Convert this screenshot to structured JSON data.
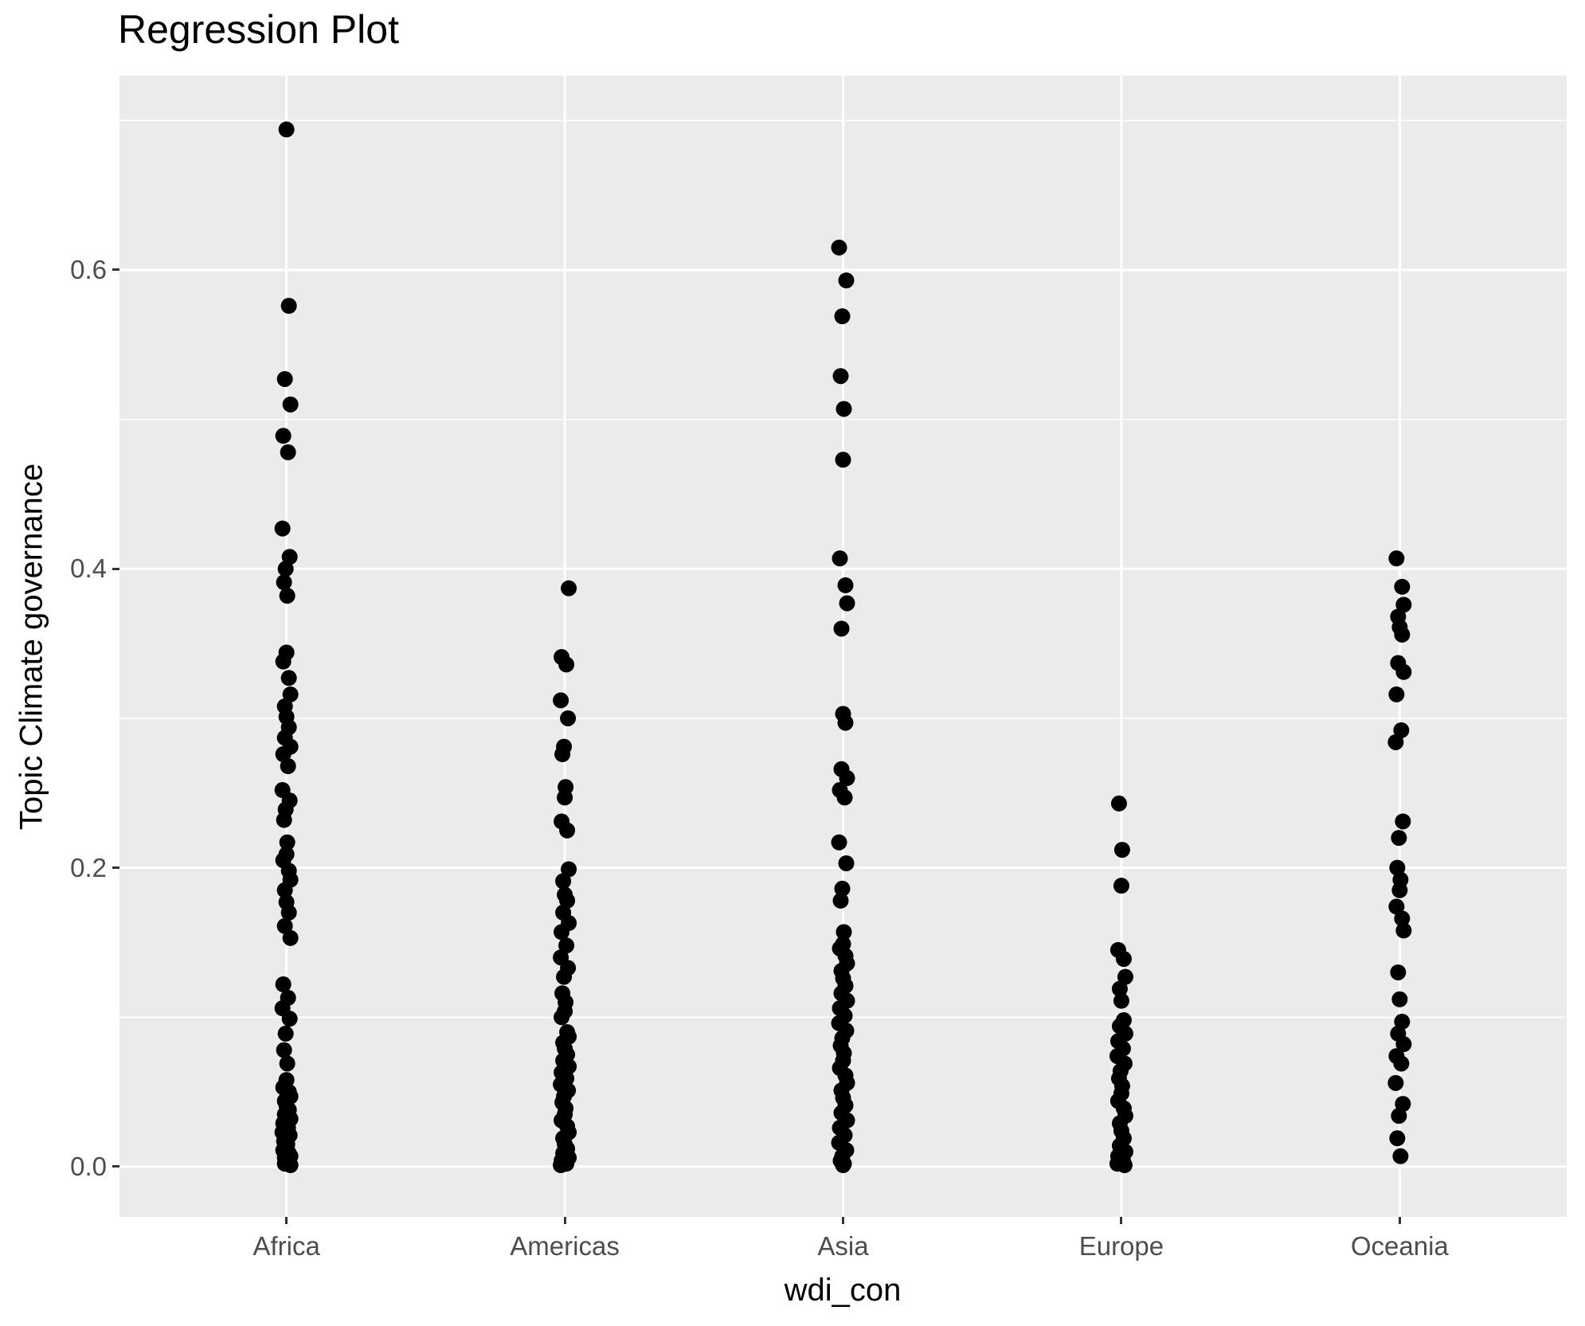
{
  "chart_data": {
    "type": "scatter",
    "title": "Regression Plot",
    "xlabel": "wdi_con",
    "ylabel": "Topic Climate governance",
    "legend": "none",
    "grid": "on",
    "x_categories": [
      "Africa",
      "Americas",
      "Asia",
      "Europe",
      "Oceania"
    ],
    "y_axis": {
      "tick_labels": [
        "0.0",
        "0.2",
        "0.4",
        "0.6"
      ],
      "tick_values": [
        0.0,
        0.2,
        0.4,
        0.6
      ],
      "minor_grid_values": [
        0.1,
        0.3,
        0.5,
        0.7
      ],
      "ylim": [
        -0.0336,
        0.73
      ]
    },
    "style": {
      "panel_bg": "#EBEBEB",
      "grid_color": "#FFFFFF",
      "point_color": "#000000",
      "tick_text_color": "#4D4D4D",
      "tick_mark_color": "#333333",
      "title_color": "#000000"
    },
    "series": [
      {
        "name": "Africa",
        "values": [
          0.694,
          0.576,
          0.527,
          0.51,
          0.489,
          0.478,
          0.427,
          0.408,
          0.4,
          0.391,
          0.382,
          0.344,
          0.338,
          0.327,
          0.316,
          0.308,
          0.301,
          0.294,
          0.287,
          0.281,
          0.276,
          0.268,
          0.252,
          0.245,
          0.239,
          0.232,
          0.217,
          0.209,
          0.205,
          0.198,
          0.192,
          0.185,
          0.177,
          0.17,
          0.161,
          0.153,
          0.122,
          0.113,
          0.106,
          0.099,
          0.089,
          0.078,
          0.069,
          0.058,
          0.053,
          0.05,
          0.047,
          0.044,
          0.041,
          0.038,
          0.035,
          0.032,
          0.029,
          0.026,
          0.023,
          0.021,
          0.019,
          0.017,
          0.015,
          0.013,
          0.011,
          0.009,
          0.007,
          0.006,
          0.004,
          0.003,
          0.002,
          0.001
        ]
      },
      {
        "name": "Americas",
        "values": [
          0.387,
          0.341,
          0.336,
          0.312,
          0.3,
          0.281,
          0.276,
          0.254,
          0.247,
          0.231,
          0.225,
          0.199,
          0.191,
          0.182,
          0.178,
          0.17,
          0.163,
          0.157,
          0.148,
          0.14,
          0.133,
          0.127,
          0.116,
          0.11,
          0.104,
          0.1,
          0.09,
          0.087,
          0.083,
          0.079,
          0.075,
          0.071,
          0.067,
          0.063,
          0.059,
          0.055,
          0.051,
          0.047,
          0.043,
          0.039,
          0.035,
          0.031,
          0.027,
          0.023,
          0.019,
          0.015,
          0.012,
          0.009,
          0.006,
          0.004,
          0.002,
          0.001
        ]
      },
      {
        "name": "Asia",
        "values": [
          0.615,
          0.593,
          0.569,
          0.529,
          0.507,
          0.473,
          0.407,
          0.389,
          0.377,
          0.36,
          0.303,
          0.297,
          0.266,
          0.26,
          0.252,
          0.247,
          0.217,
          0.203,
          0.186,
          0.178,
          0.157,
          0.149,
          0.146,
          0.141,
          0.136,
          0.131,
          0.126,
          0.121,
          0.116,
          0.111,
          0.106,
          0.101,
          0.096,
          0.091,
          0.086,
          0.081,
          0.076,
          0.071,
          0.066,
          0.061,
          0.056,
          0.051,
          0.046,
          0.041,
          0.036,
          0.031,
          0.026,
          0.021,
          0.016,
          0.011,
          0.007,
          0.004,
          0.002,
          0.001
        ]
      },
      {
        "name": "Europe",
        "values": [
          0.243,
          0.212,
          0.188,
          0.145,
          0.139,
          0.127,
          0.119,
          0.111,
          0.098,
          0.094,
          0.089,
          0.084,
          0.079,
          0.074,
          0.069,
          0.064,
          0.059,
          0.054,
          0.049,
          0.044,
          0.039,
          0.034,
          0.029,
          0.024,
          0.019,
          0.014,
          0.01,
          0.007,
          0.004,
          0.002,
          0.001
        ]
      },
      {
        "name": "Oceania",
        "values": [
          0.407,
          0.388,
          0.376,
          0.368,
          0.361,
          0.356,
          0.337,
          0.331,
          0.316,
          0.292,
          0.284,
          0.231,
          0.22,
          0.2,
          0.192,
          0.185,
          0.174,
          0.166,
          0.158,
          0.13,
          0.112,
          0.097,
          0.089,
          0.082,
          0.074,
          0.069,
          0.056,
          0.042,
          0.034,
          0.019,
          0.007
        ]
      }
    ]
  }
}
